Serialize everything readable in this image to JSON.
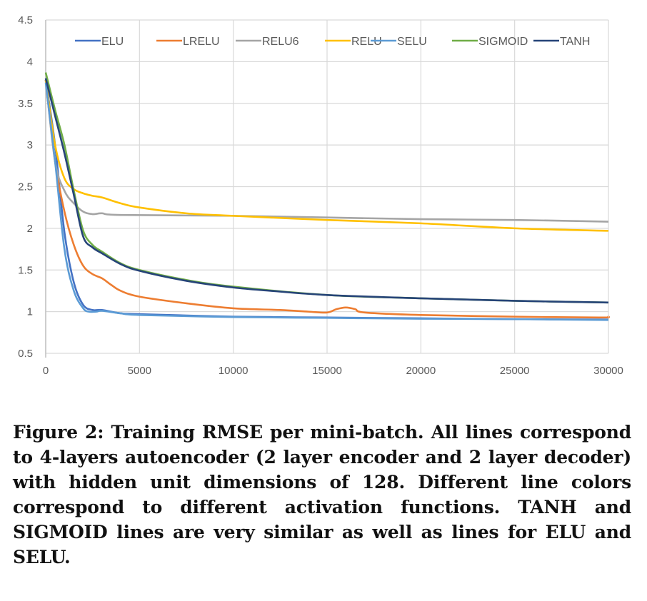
{
  "chart_data": {
    "type": "line",
    "title": "",
    "xlabel": "",
    "ylabel": "",
    "xlim": [
      0,
      30000
    ],
    "ylim": [
      0.5,
      4.5
    ],
    "xticks": [
      0,
      5000,
      10000,
      15000,
      20000,
      25000,
      30000
    ],
    "yticks": [
      0.5,
      1,
      1.5,
      2,
      2.5,
      3,
      3.5,
      4,
      4.5
    ],
    "grid": true,
    "legend_position": "top",
    "series": [
      {
        "name": "ELU",
        "color": "#4472C4",
        "x": [
          0,
          500,
          1000,
          1500,
          2000,
          2500,
          3000,
          4000,
          5000,
          10000,
          15000,
          20000,
          25000,
          30000
        ],
        "y": [
          3.78,
          3.0,
          1.95,
          1.35,
          1.08,
          1.02,
          1.02,
          0.98,
          0.97,
          0.94,
          0.93,
          0.92,
          0.91,
          0.905
        ]
      },
      {
        "name": "LRELU",
        "color": "#ED7D31",
        "x": [
          0,
          500,
          1000,
          1500,
          2000,
          2500,
          3000,
          3500,
          4000,
          5000,
          7500,
          10000,
          12500,
          14000,
          15000,
          15500,
          16000,
          16500,
          17000,
          20000,
          25000,
          29500,
          30000
        ],
        "y": [
          3.78,
          2.8,
          2.2,
          1.8,
          1.55,
          1.45,
          1.4,
          1.32,
          1.25,
          1.18,
          1.1,
          1.04,
          1.02,
          1.0,
          0.99,
          1.03,
          1.05,
          1.03,
          0.99,
          0.96,
          0.94,
          0.93,
          0.94
        ]
      },
      {
        "name": "RELU6",
        "color": "#A5A5A5",
        "x": [
          0,
          500,
          1000,
          1500,
          2000,
          2500,
          3000,
          4000,
          10000,
          15000,
          20000,
          25000,
          30000
        ],
        "y": [
          3.78,
          2.8,
          2.45,
          2.3,
          2.2,
          2.17,
          2.18,
          2.16,
          2.15,
          2.13,
          2.11,
          2.1,
          2.08
        ]
      },
      {
        "name": "RELU",
        "color": "#FFC000",
        "x": [
          0,
          500,
          1000,
          1500,
          2000,
          2500,
          3000,
          4000,
          5000,
          7500,
          10000,
          15000,
          20000,
          25000,
          30000
        ],
        "y": [
          3.78,
          3.0,
          2.6,
          2.47,
          2.42,
          2.39,
          2.37,
          2.3,
          2.25,
          2.18,
          2.15,
          2.1,
          2.06,
          2.0,
          1.97
        ]
      },
      {
        "name": "SELU",
        "color": "#5B9BD5",
        "x": [
          0,
          500,
          1000,
          1500,
          2000,
          2300,
          2700,
          3000,
          4000,
          5000,
          10000,
          15000,
          20000,
          25000,
          30000
        ],
        "y": [
          3.75,
          2.8,
          1.75,
          1.25,
          1.04,
          1.0,
          1.0,
          1.01,
          0.98,
          0.96,
          0.935,
          0.925,
          0.915,
          0.91,
          0.9
        ]
      },
      {
        "name": "SIGMOID",
        "color": "#70AD47",
        "x": [
          0,
          500,
          1000,
          1500,
          2000,
          2500,
          3000,
          4000,
          5000,
          7500,
          10000,
          15000,
          20000,
          25000,
          30000
        ],
        "y": [
          3.87,
          3.42,
          3.0,
          2.45,
          1.97,
          1.8,
          1.72,
          1.58,
          1.5,
          1.38,
          1.3,
          1.2,
          1.16,
          1.13,
          1.11
        ]
      },
      {
        "name": "TANH",
        "color": "#264478",
        "x": [
          0,
          500,
          1000,
          1500,
          2000,
          2500,
          3000,
          4000,
          5000,
          7500,
          10000,
          12000,
          15000,
          20000,
          25000,
          30000
        ],
        "y": [
          3.8,
          3.35,
          2.9,
          2.4,
          1.9,
          1.77,
          1.7,
          1.57,
          1.49,
          1.37,
          1.29,
          1.25,
          1.2,
          1.16,
          1.13,
          1.11
        ]
      }
    ]
  },
  "caption": "Figure 2: Training RMSE per mini-batch. All lines correspond to 4-layers autoencoder (2 layer encoder and 2 layer decoder) with hidden unit dimensions of 128. Different line colors correspond to different activation functions. TANH and SIGMOID lines are very similar as well as lines for ELU and SELU."
}
